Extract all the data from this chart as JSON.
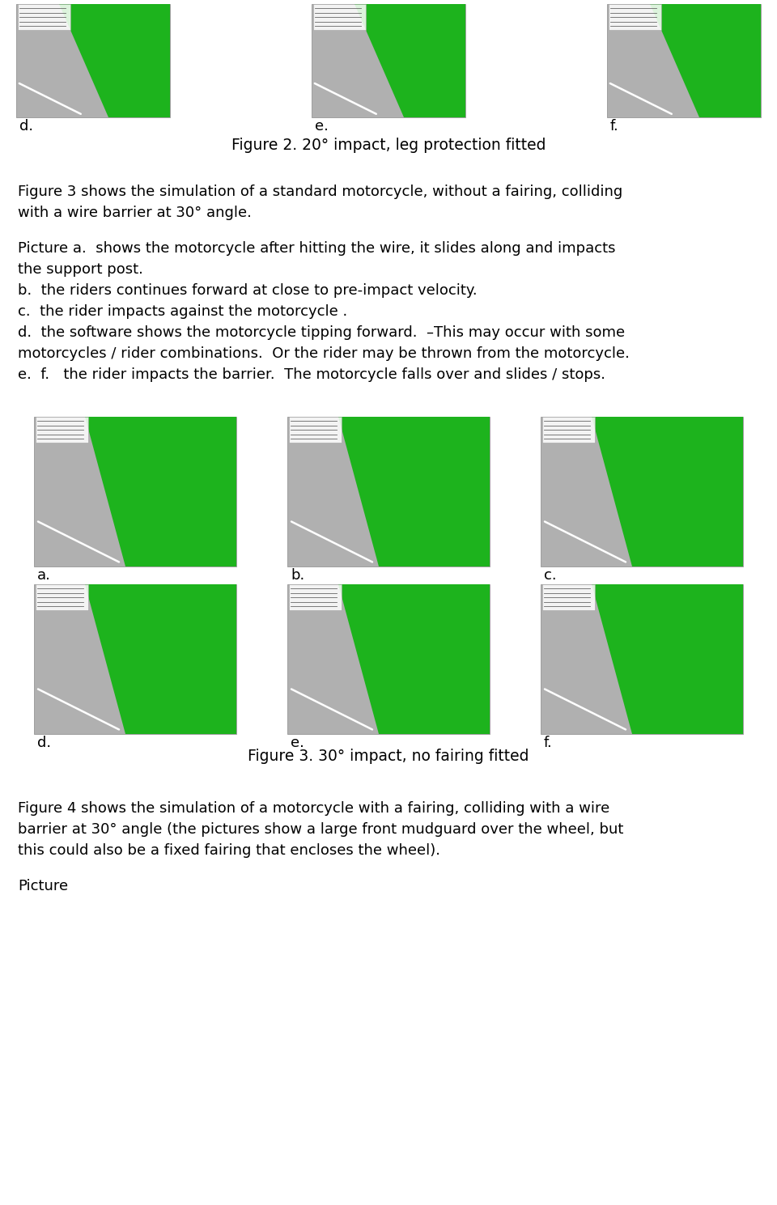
{
  "fig_width": 9.6,
  "fig_height": 14.89,
  "bg_color": "#ffffff",
  "text_color": "#000000",
  "font_family": "DejaVu Sans",
  "top_images_label": [
    "d.",
    "e.",
    "f."
  ],
  "figure2_caption": "Figure 2. 20° impact, leg protection fitted",
  "fig3_intro_line1": "Figure 3 shows the simulation of a standard motorcycle, without a fairing, colliding",
  "fig3_intro_line2": "with a wire barrier at 30° angle.",
  "fig3_bullets": [
    "Picture a.  shows the motorcycle after hitting the wire, it slides along and impacts",
    "the support post.",
    "b.  the riders continues forward at close to pre-impact velocity.",
    "c.  the rider impacts against the motorcycle .",
    "d.  the software shows the motorcycle tipping forward.  –This may occur with some",
    "motorcycles / rider combinations.  Or the rider may be thrown from the motorcycle.",
    "e.  f.   the rider impacts the barrier.  The motorcycle falls over and slides / stops."
  ],
  "row1_labels": [
    "a.",
    "b.",
    "c."
  ],
  "row2_labels": [
    "d.",
    "e.",
    "f."
  ],
  "figure3_caption": "Figure 3. 30° impact, no fairing fitted",
  "fig4_intro_line1": "Figure 4 shows the simulation of a motorcycle with a fairing, colliding with a wire",
  "fig4_intro_line2": "barrier at 30° angle (the pictures show a large front mudguard over the wheel, but",
  "fig4_intro_line3": "this could also be a fixed fairing that encloses the wheel).",
  "fig4_picture": "Picture",
  "road_color": "#b0b0b0",
  "green_color": "#1db31d"
}
